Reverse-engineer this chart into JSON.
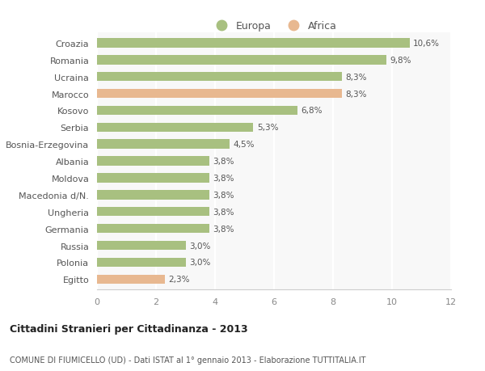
{
  "categories": [
    "Croazia",
    "Romania",
    "Ucraina",
    "Marocco",
    "Kosovo",
    "Serbia",
    "Bosnia-Erzegovina",
    "Albania",
    "Moldova",
    "Macedonia d/N.",
    "Ungheria",
    "Germania",
    "Russia",
    "Polonia",
    "Egitto"
  ],
  "values": [
    10.6,
    9.8,
    8.3,
    8.3,
    6.8,
    5.3,
    4.5,
    3.8,
    3.8,
    3.8,
    3.8,
    3.8,
    3.0,
    3.0,
    2.3
  ],
  "labels": [
    "10,6%",
    "9,8%",
    "8,3%",
    "8,3%",
    "6,8%",
    "5,3%",
    "4,5%",
    "3,8%",
    "3,8%",
    "3,8%",
    "3,8%",
    "3,8%",
    "3,0%",
    "3,0%",
    "2,3%"
  ],
  "continents": [
    "Europa",
    "Europa",
    "Europa",
    "Africa",
    "Europa",
    "Europa",
    "Europa",
    "Europa",
    "Europa",
    "Europa",
    "Europa",
    "Europa",
    "Europa",
    "Europa",
    "Africa"
  ],
  "color_europa": "#a8c080",
  "color_africa": "#e8b890",
  "background_color": "#ffffff",
  "plot_bg_color": "#f8f8f8",
  "grid_color": "#ffffff",
  "text_color": "#555555",
  "title1": "Cittadini Stranieri per Cittadinanza - 2013",
  "title2": "COMUNE DI FIUMICELLO (UD) - Dati ISTAT al 1° gennaio 2013 - Elaborazione TUTTITALIA.IT",
  "xlim": [
    0,
    12
  ],
  "xticks": [
    0,
    2,
    4,
    6,
    8,
    10,
    12
  ],
  "bar_height": 0.55,
  "legend_europa": "Europa",
  "legend_africa": "Africa"
}
